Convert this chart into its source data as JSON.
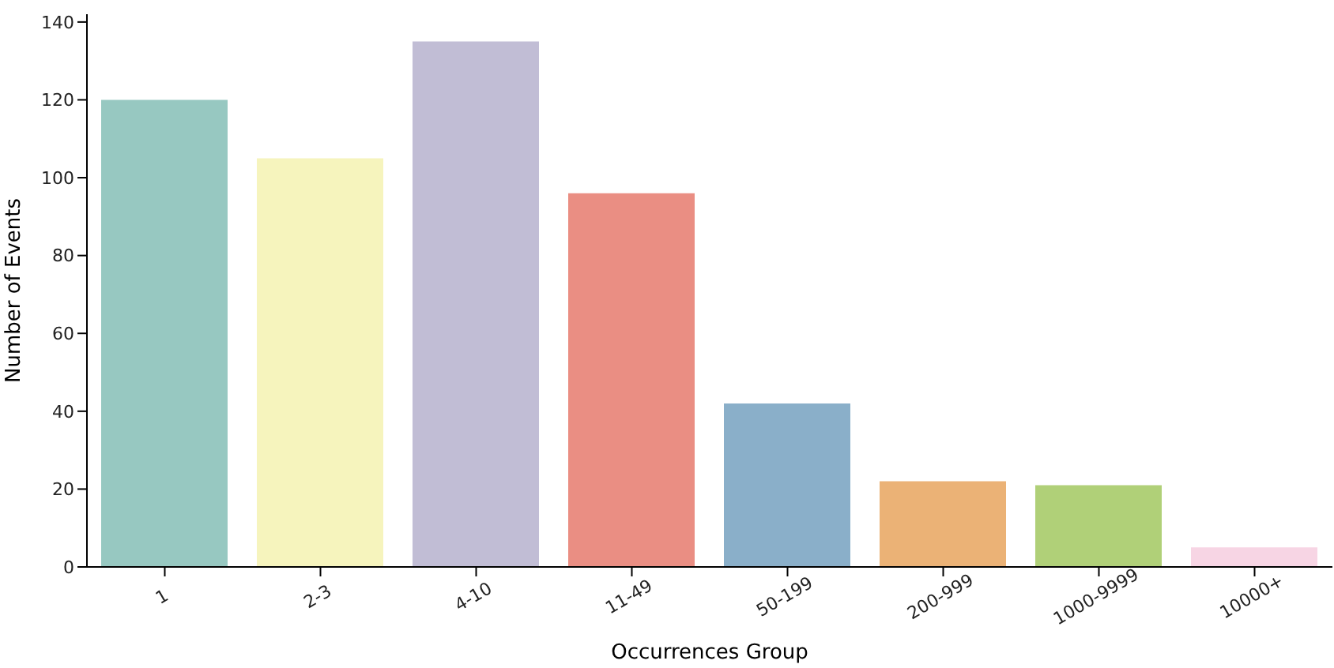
{
  "chart_data": {
    "type": "bar",
    "xlabel": "Occurrences Group",
    "ylabel": "Number of Events",
    "categories": [
      "1",
      "2-3",
      "4-10",
      "11-49",
      "50-199",
      "200-999",
      "1000-9999",
      "10000+"
    ],
    "values": [
      120,
      105,
      135,
      96,
      42,
      22,
      21,
      5
    ],
    "colors": [
      "#97c8c1",
      "#f6f4bd",
      "#c1bdd5",
      "#ea8e83",
      "#8aafc9",
      "#ebb276",
      "#b0d078",
      "#f7d5e4"
    ],
    "ylim": [
      0,
      142
    ],
    "yticks": [
      0,
      20,
      40,
      60,
      80,
      100,
      120,
      140
    ],
    "grid": false,
    "legend": false
  }
}
